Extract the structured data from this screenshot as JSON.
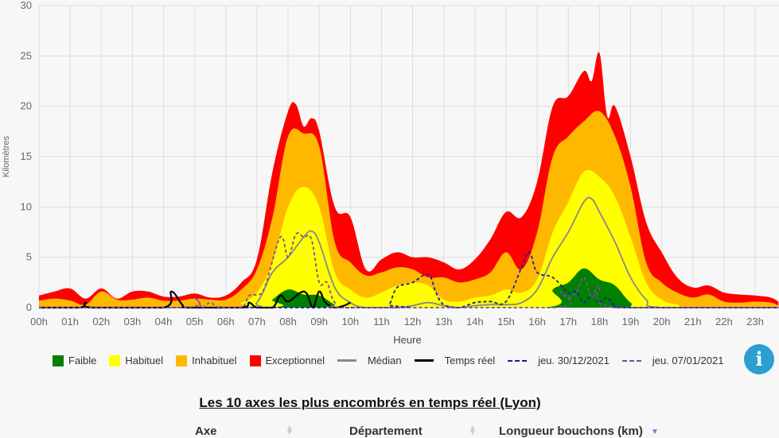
{
  "chart_data": {
    "type": "area",
    "xlabel": "Heure",
    "ylabel": "Kilomètres",
    "ylim": [
      0,
      30
    ],
    "xlim": [
      0,
      23.75
    ],
    "yticks": [
      "0",
      "5",
      "10",
      "15",
      "20",
      "25",
      "30"
    ],
    "xticks": [
      "00h",
      "01h",
      "02h",
      "03h",
      "04h",
      "05h",
      "06h",
      "07h",
      "08h",
      "09h",
      "10h",
      "11h",
      "12h",
      "13h",
      "14h",
      "15h",
      "16h",
      "17h",
      "18h",
      "19h",
      "20h",
      "21h",
      "22h",
      "23h"
    ],
    "grid": true,
    "legend_position": "bottom",
    "areas": [
      {
        "name": "Exceptionnel",
        "color": "#ff0000",
        "points": [
          [
            0,
            1.2
          ],
          [
            0.5,
            1.6
          ],
          [
            1,
            1.9
          ],
          [
            1.5,
            0.9
          ],
          [
            2,
            1.9
          ],
          [
            2.5,
            0.9
          ],
          [
            3,
            1.6
          ],
          [
            3.5,
            1.6
          ],
          [
            4,
            1.1
          ],
          [
            4.5,
            1.1
          ],
          [
            5,
            1.4
          ],
          [
            5.5,
            1.0
          ],
          [
            6,
            1.2
          ],
          [
            6.5,
            2.5
          ],
          [
            7,
            4.8
          ],
          [
            7.5,
            13.5
          ],
          [
            8,
            19.5
          ],
          [
            8.25,
            20.2
          ],
          [
            8.5,
            18
          ],
          [
            8.75,
            18.8
          ],
          [
            9,
            17.5
          ],
          [
            9.5,
            10
          ],
          [
            10,
            9
          ],
          [
            10.5,
            3.8
          ],
          [
            11,
            4.8
          ],
          [
            11.5,
            5.5
          ],
          [
            12,
            5
          ],
          [
            12.5,
            5
          ],
          [
            13,
            4.5
          ],
          [
            13.5,
            3.8
          ],
          [
            14,
            4.8
          ],
          [
            14.5,
            6.8
          ],
          [
            15,
            9.5
          ],
          [
            15.5,
            9
          ],
          [
            16,
            12.5
          ],
          [
            16.5,
            20
          ],
          [
            17,
            21
          ],
          [
            17.5,
            23.5
          ],
          [
            17.75,
            22.5
          ],
          [
            18,
            25.3
          ],
          [
            18.25,
            19
          ],
          [
            18.5,
            20
          ],
          [
            19,
            15
          ],
          [
            19.5,
            8.5
          ],
          [
            20,
            5.5
          ],
          [
            20.5,
            3
          ],
          [
            21,
            2
          ],
          [
            21.5,
            2.2
          ],
          [
            22,
            1.5
          ],
          [
            22.5,
            1.3
          ],
          [
            23,
            1.2
          ],
          [
            23.5,
            1.0
          ],
          [
            23.75,
            0.6
          ]
        ]
      },
      {
        "name": "Inhabituel",
        "color": "#ffb800",
        "points": [
          [
            0,
            0.7
          ],
          [
            0.5,
            0.9
          ],
          [
            1,
            0.7
          ],
          [
            1.5,
            0.3
          ],
          [
            2,
            1.6
          ],
          [
            2.5,
            0.8
          ],
          [
            3,
            0.8
          ],
          [
            3.5,
            1.0
          ],
          [
            4,
            0.7
          ],
          [
            4.5,
            0.7
          ],
          [
            5,
            0.9
          ],
          [
            5.5,
            0.8
          ],
          [
            6,
            0.8
          ],
          [
            6.5,
            1.8
          ],
          [
            7,
            3.8
          ],
          [
            7.5,
            9
          ],
          [
            8,
            17
          ],
          [
            8.5,
            17.3
          ],
          [
            9,
            16
          ],
          [
            9.5,
            6.5
          ],
          [
            10,
            4.5
          ],
          [
            10.5,
            3.2
          ],
          [
            11,
            3.5
          ],
          [
            11.5,
            4
          ],
          [
            12,
            3.8
          ],
          [
            12.5,
            3
          ],
          [
            13,
            3
          ],
          [
            13.5,
            2.5
          ],
          [
            14,
            2.8
          ],
          [
            14.5,
            3.5
          ],
          [
            15,
            5.5
          ],
          [
            15.5,
            3.8
          ],
          [
            16,
            7.5
          ],
          [
            16.5,
            15
          ],
          [
            17,
            17
          ],
          [
            17.5,
            18.5
          ],
          [
            18,
            19.5
          ],
          [
            18.5,
            17
          ],
          [
            19,
            12
          ],
          [
            19.5,
            4.5
          ],
          [
            20,
            2.5
          ],
          [
            20.5,
            1.5
          ],
          [
            21,
            1.0
          ],
          [
            21.5,
            1.3
          ],
          [
            22,
            0.6
          ],
          [
            22.5,
            0.5
          ],
          [
            23,
            0.6
          ],
          [
            23.5,
            0.5
          ],
          [
            23.75,
            0.2
          ]
        ]
      },
      {
        "name": "Habituel",
        "color": "#ffff00",
        "points": [
          [
            0,
            0
          ],
          [
            6,
            0
          ],
          [
            6.5,
            0.5
          ],
          [
            7,
            1.5
          ],
          [
            7.5,
            4.5
          ],
          [
            8,
            10
          ],
          [
            8.5,
            12
          ],
          [
            9,
            10
          ],
          [
            9.5,
            3.5
          ],
          [
            10,
            1.8
          ],
          [
            10.5,
            1.0
          ],
          [
            11,
            1.5
          ],
          [
            11.5,
            2.2
          ],
          [
            12,
            2.5
          ],
          [
            12.5,
            2.2
          ],
          [
            13,
            0.8
          ],
          [
            13.5,
            0.6
          ],
          [
            14,
            1
          ],
          [
            14.5,
            1.2
          ],
          [
            15,
            1.8
          ],
          [
            15.5,
            1.5
          ],
          [
            16,
            2.8
          ],
          [
            16.5,
            7.5
          ],
          [
            17,
            10.5
          ],
          [
            17.5,
            13.5
          ],
          [
            18,
            13
          ],
          [
            18.5,
            11
          ],
          [
            19,
            7
          ],
          [
            19.5,
            2.5
          ],
          [
            20,
            0.8
          ],
          [
            20.5,
            0.3
          ],
          [
            21,
            0
          ],
          [
            23.75,
            0
          ]
        ]
      },
      {
        "name": "Faible",
        "color": "#008000",
        "points": [
          [
            0,
            0
          ],
          [
            7.2,
            0
          ],
          [
            7.5,
            0.8
          ],
          [
            8,
            1.8
          ],
          [
            8.5,
            1.3
          ],
          [
            9,
            1.2
          ],
          [
            9.5,
            0.3
          ],
          [
            9.8,
            0
          ],
          [
            16.2,
            0
          ],
          [
            16.5,
            1.8
          ],
          [
            17,
            2.5
          ],
          [
            17.5,
            3.9
          ],
          [
            18,
            2.8
          ],
          [
            18.5,
            2.2
          ],
          [
            19,
            0.5
          ],
          [
            19.5,
            0
          ],
          [
            23.75,
            0
          ]
        ]
      }
    ],
    "lines": [
      {
        "name": "Médian",
        "color": "#888888",
        "style": "solid",
        "points": [
          [
            0,
            0
          ],
          [
            6.5,
            0
          ],
          [
            7,
            0.5
          ],
          [
            7.5,
            3.5
          ],
          [
            8,
            5
          ],
          [
            8.5,
            7
          ],
          [
            8.75,
            7.6
          ],
          [
            9,
            6.5
          ],
          [
            9.5,
            2
          ],
          [
            10,
            0.5
          ],
          [
            10.5,
            0
          ],
          [
            11.5,
            0
          ],
          [
            12,
            0.2
          ],
          [
            12.5,
            0.5
          ],
          [
            13,
            0.2
          ],
          [
            13.5,
            0
          ],
          [
            14,
            0.2
          ],
          [
            14.5,
            0.3
          ],
          [
            15,
            0.3
          ],
          [
            15.5,
            0.5
          ],
          [
            16,
            1.8
          ],
          [
            16.5,
            5
          ],
          [
            17,
            7.5
          ],
          [
            17.5,
            10.5
          ],
          [
            17.75,
            10.8
          ],
          [
            18,
            9.5
          ],
          [
            18.5,
            6.5
          ],
          [
            19,
            3
          ],
          [
            19.5,
            0.8
          ],
          [
            20,
            0
          ],
          [
            23.75,
            0
          ]
        ]
      },
      {
        "name": "Temps réel",
        "color": "#000000",
        "style": "solid",
        "points": [
          [
            0,
            0
          ],
          [
            1.3,
            0
          ],
          [
            1.5,
            0.5
          ],
          [
            1.7,
            0
          ],
          [
            4,
            0
          ],
          [
            4.25,
            1.6
          ],
          [
            4.6,
            0.3
          ],
          [
            4.8,
            0
          ],
          [
            6.5,
            0
          ],
          [
            6.75,
            0.5
          ],
          [
            7,
            0
          ],
          [
            7.5,
            0
          ],
          [
            7.75,
            1.2
          ],
          [
            8,
            0.6
          ],
          [
            8.4,
            1.5
          ],
          [
            8.6,
            1.4
          ],
          [
            8.8,
            0
          ],
          [
            9,
            1.6
          ],
          [
            9.2,
            0.5
          ],
          [
            9.5,
            0
          ],
          [
            9.8,
            0.2
          ],
          [
            10,
            0.5
          ]
        ]
      },
      {
        "name": "jeu. 30/12/2021",
        "color": "#1a1aa0",
        "style": "dashed",
        "points": [
          [
            0,
            0
          ],
          [
            11,
            0
          ],
          [
            11.25,
            0.3
          ],
          [
            11.5,
            2
          ],
          [
            12,
            2.5
          ],
          [
            12.5,
            3.3
          ],
          [
            12.75,
            1.5
          ],
          [
            13,
            0.3
          ],
          [
            13.5,
            0
          ],
          [
            14,
            0.5
          ],
          [
            14.5,
            0.6
          ],
          [
            15,
            0.6
          ],
          [
            15.5,
            4
          ],
          [
            15.75,
            5.5
          ],
          [
            16,
            3.5
          ],
          [
            16.5,
            3
          ],
          [
            17,
            1.5
          ],
          [
            17.25,
            1.6
          ],
          [
            17.5,
            0.5
          ],
          [
            17.75,
            1.2
          ],
          [
            18,
            0.5
          ],
          [
            18.25,
            1.0
          ],
          [
            18.5,
            0.2
          ],
          [
            19,
            0
          ],
          [
            23.75,
            0
          ]
        ]
      },
      {
        "name": "jeu. 07/01/2021",
        "color": "#7b4fa0",
        "style": "dashed",
        "points": [
          [
            0,
            0
          ],
          [
            4.7,
            0
          ],
          [
            5,
            1
          ],
          [
            5.25,
            0
          ],
          [
            5.5,
            0.5
          ],
          [
            5.8,
            0
          ],
          [
            6.5,
            0
          ],
          [
            6.75,
            1.2
          ],
          [
            7,
            1.3
          ],
          [
            7.25,
            2
          ],
          [
            7.75,
            7
          ],
          [
            8,
            5
          ],
          [
            8.25,
            7.3
          ],
          [
            8.5,
            7
          ],
          [
            8.75,
            6.8
          ],
          [
            9,
            2.5
          ],
          [
            9.25,
            2.5
          ],
          [
            9.5,
            0.5
          ],
          [
            10,
            0
          ],
          [
            16.5,
            0
          ],
          [
            16.75,
            1.5
          ],
          [
            17,
            1.0
          ],
          [
            17.25,
            1.5
          ],
          [
            17.5,
            3.0
          ],
          [
            17.75,
            1.0
          ],
          [
            18,
            2.2
          ],
          [
            18.5,
            0
          ],
          [
            23.75,
            0
          ]
        ]
      }
    ]
  },
  "legend": {
    "faible": "Faible",
    "habituel": "Habituel",
    "inhabituel": "Inhabituel",
    "exceptionnel": "Exceptionnel",
    "median": "Médian",
    "temps_reel": "Temps réel",
    "date1": "jeu. 30/12/2021",
    "date2": "jeu. 07/01/2021"
  },
  "info_icon": "info-icon",
  "info_label": "i",
  "table": {
    "title": "Les 10 axes les plus encombrés en temps réel (Lyon)",
    "headers": [
      "Axe",
      "Département",
      "Longueur bouchons (km)"
    ],
    "sorted_column": "Longueur bouchons (km)"
  }
}
